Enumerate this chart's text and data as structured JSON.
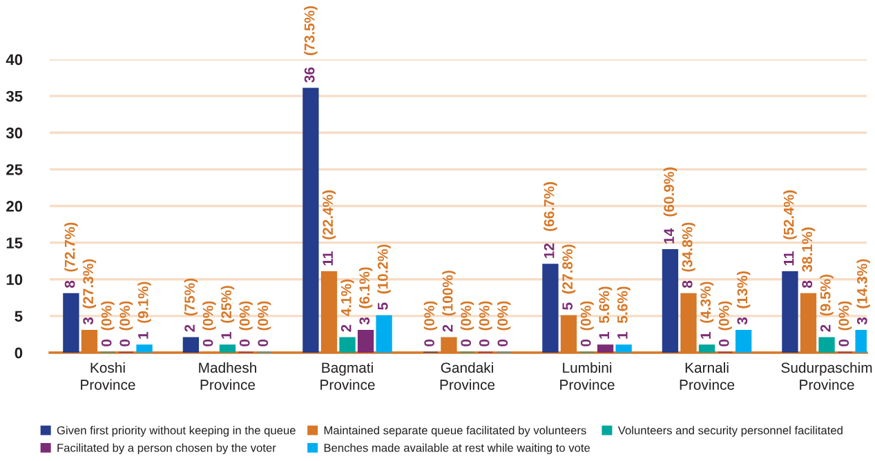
{
  "chart_data": {
    "type": "bar",
    "categories": [
      "Koshi\nProvince",
      "Madhesh\nProvince",
      "Bagmati\nProvince",
      "Gandaki\nProvince",
      "Lumbini\nProvince",
      "Karnali\nProvince",
      "Sudurpaschim\nProvince"
    ],
    "series": [
      {
        "name": "Given first priority without keeping in the queue",
        "color": "#253d8c",
        "values": [
          8,
          2,
          36,
          0,
          12,
          14,
          11
        ],
        "value_labels": [
          "8 (72.7%)",
          "2 (75%)",
          "36 (73.5%)",
          "0 (0%)",
          "12 (66.7%)",
          "14 (60.9%)",
          "11 (52.4%)"
        ]
      },
      {
        "name": "Maintained separate queue facilitated by volunteers",
        "color": "#d67828",
        "values": [
          3,
          0,
          11,
          2,
          5,
          8,
          8
        ],
        "value_labels": [
          "3 (27.3%)",
          "0 (0%)",
          "11 (22.4%)",
          "2 (100%)",
          "5 (27.8%)",
          "8 (34.8%)",
          "8 38.1%)"
        ]
      },
      {
        "name": "Volunteers and security personnel facilitated",
        "color": "#00a79d",
        "values": [
          0,
          1,
          2,
          0,
          0,
          1,
          2
        ],
        "value_labels": [
          "0 (0%)",
          "1 (25%)",
          "2 4.1%)",
          "0 (0%)",
          "0 (0%)",
          "1 (4.3%)",
          "2 (9.5%)"
        ]
      },
      {
        "name": "Facilitated by a person chosen by the voter",
        "color": "#7b2c74",
        "values": [
          0,
          0,
          3,
          0,
          1,
          0,
          0
        ],
        "value_labels": [
          "0 (0%)",
          "0 (0%)",
          "3 (6.1%)",
          "0 (0%)",
          "1 5.6%)",
          "0 (0%)",
          "0 (0%)"
        ]
      },
      {
        "name": "Benches made available at rest while waiting to vote",
        "color": "#00aeef",
        "values": [
          1,
          0,
          5,
          0,
          1,
          3,
          3
        ],
        "value_labels": [
          "1 (9.1%)",
          "0 (0%)",
          "5 (10.2%)",
          "0 (0%)",
          "1 5.6%)",
          "3 (13%)",
          "3 (14.3%)"
        ]
      }
    ],
    "ylim": [
      0,
      40
    ],
    "yticks": [
      0,
      5,
      10,
      15,
      20,
      25,
      30,
      35,
      40
    ],
    "grid": "y",
    "legend": "bottom"
  }
}
